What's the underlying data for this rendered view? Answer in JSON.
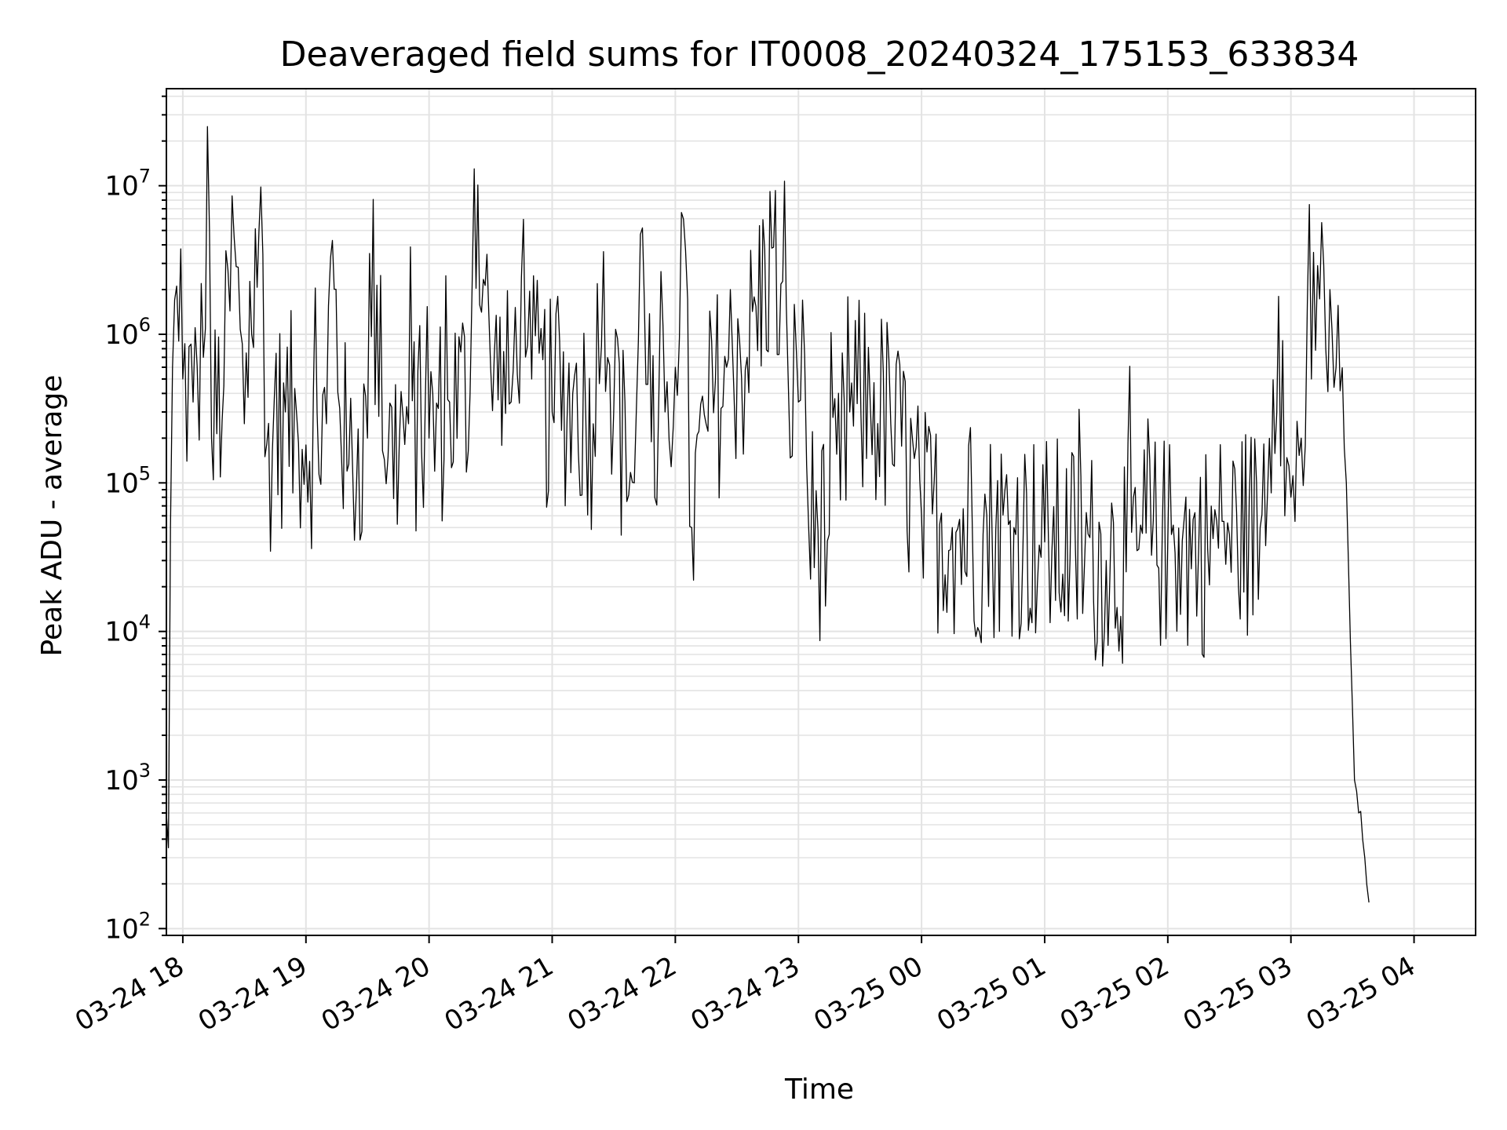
{
  "chart_data": {
    "type": "line",
    "title": "Deaveraged field sums for IT0008_20240324_175153_633834",
    "xlabel": "Time",
    "ylabel": "Peak ADU - average",
    "yscale": "log",
    "ylim": [
      90,
      45000000
    ],
    "xlim": [
      "2024-03-24 17:52",
      "2024-03-25 04:30"
    ],
    "grid": true,
    "line_color": "#000000",
    "grid_color": "#e3e3e3",
    "x_ticks": [
      {
        "time": "2024-03-24 18:00",
        "label": "03-24 18"
      },
      {
        "time": "2024-03-24 19:00",
        "label": "03-24 19"
      },
      {
        "time": "2024-03-24 20:00",
        "label": "03-24 20"
      },
      {
        "time": "2024-03-24 21:00",
        "label": "03-24 21"
      },
      {
        "time": "2024-03-24 22:00",
        "label": "03-24 22"
      },
      {
        "time": "2024-03-24 23:00",
        "label": "03-24 23"
      },
      {
        "time": "2024-03-25 00:00",
        "label": "03-25 00"
      },
      {
        "time": "2024-03-25 01:00",
        "label": "03-25 01"
      },
      {
        "time": "2024-03-25 02:00",
        "label": "03-25 02"
      },
      {
        "time": "2024-03-25 03:00",
        "label": "03-25 03"
      },
      {
        "time": "2024-03-25 04:00",
        "label": "03-25 04"
      }
    ],
    "y_ticks": [
      {
        "value": 100,
        "base": "10",
        "exp": "2"
      },
      {
        "value": 1000,
        "base": "10",
        "exp": "3"
      },
      {
        "value": 10000,
        "base": "10",
        "exp": "4"
      },
      {
        "value": 100000,
        "base": "10",
        "exp": "5"
      },
      {
        "value": 1000000,
        "base": "10",
        "exp": "6"
      },
      {
        "value": 10000000,
        "base": "10",
        "exp": "7"
      }
    ],
    "series": [
      {
        "points": [
          [
            "2024-03-24 17:52",
            600
          ],
          [
            "2024-03-24 17:53",
            350
          ],
          [
            "2024-03-24 17:54",
            50000
          ],
          [
            "2024-03-24 17:55",
            600000
          ],
          [
            "2024-03-24 17:56",
            1700000
          ],
          [
            "2024-03-24 17:58",
            900000
          ],
          [
            "2024-03-24 18:00",
            500000
          ],
          [
            "2024-03-24 18:05",
            350000
          ],
          [
            "2024-03-24 18:10",
            700000
          ],
          [
            "2024-03-24 18:12",
            25000000
          ],
          [
            "2024-03-24 18:14",
            200000
          ],
          [
            "2024-03-24 18:20",
            450000
          ],
          [
            "2024-03-24 18:25",
            4500000
          ],
          [
            "2024-03-24 18:30",
            250000
          ],
          [
            "2024-03-24 18:38",
            9800000
          ],
          [
            "2024-03-24 18:40",
            150000
          ],
          [
            "2024-03-24 18:50",
            300000
          ],
          [
            "2024-03-24 19:00",
            180000
          ],
          [
            "2024-03-24 19:10",
            250000
          ],
          [
            "2024-03-24 19:12",
            3300000
          ],
          [
            "2024-03-24 19:20",
            120000
          ],
          [
            "2024-03-24 19:30",
            200000
          ],
          [
            "2024-03-24 19:31",
            3500000
          ],
          [
            "2024-03-24 19:40",
            150000
          ],
          [
            "2024-03-24 19:50",
            250000
          ],
          [
            "2024-03-24 20:00",
            200000
          ],
          [
            "2024-03-24 20:10",
            350000
          ],
          [
            "2024-03-24 20:20",
            400000
          ],
          [
            "2024-03-24 20:22",
            13000000
          ],
          [
            "2024-03-24 20:30",
            600000
          ],
          [
            "2024-03-24 20:40",
            350000
          ],
          [
            "2024-03-24 20:45",
            2400000
          ],
          [
            "2024-03-24 20:50",
            500000
          ],
          [
            "2024-03-24 21:00",
            300000
          ],
          [
            "2024-03-24 21:10",
            400000
          ],
          [
            "2024-03-24 21:20",
            250000
          ],
          [
            "2024-03-24 21:25",
            3600000
          ],
          [
            "2024-03-24 21:30",
            300000
          ],
          [
            "2024-03-24 21:40",
            100000
          ],
          [
            "2024-03-24 21:44",
            5200000
          ],
          [
            "2024-03-24 21:50",
            80000
          ],
          [
            "2024-03-24 21:55",
            300000
          ],
          [
            "2024-03-24 22:00",
            600000
          ],
          [
            "2024-03-24 22:03",
            6600000
          ],
          [
            "2024-03-24 22:08",
            50000
          ],
          [
            "2024-03-24 22:15",
            250000
          ],
          [
            "2024-03-24 22:25",
            600000
          ],
          [
            "2024-03-24 22:35",
            700000
          ],
          [
            "2024-03-24 22:47",
            3800000
          ],
          [
            "2024-03-24 22:55",
            500000
          ],
          [
            "2024-03-24 23:00",
            350000
          ],
          [
            "2024-03-24 23:02",
            1700000
          ],
          [
            "2024-03-24 23:05",
            50000
          ],
          [
            "2024-03-24 23:15",
            45000
          ],
          [
            "2024-03-24 23:25",
            300000
          ],
          [
            "2024-03-24 23:35",
            350000
          ],
          [
            "2024-03-24 23:45",
            250000
          ],
          [
            "2024-03-25 00:00",
            60000
          ],
          [
            "2024-03-25 00:15",
            50000
          ],
          [
            "2024-03-25 00:30",
            45000
          ],
          [
            "2024-03-25 00:45",
            50000
          ],
          [
            "2024-03-25 01:00",
            40000
          ],
          [
            "2024-03-25 01:15",
            35000
          ],
          [
            "2024-03-25 01:30",
            30000
          ],
          [
            "2024-03-25 01:45",
            35000
          ],
          [
            "2024-03-25 02:00",
            40000
          ],
          [
            "2024-03-25 02:15",
            35000
          ],
          [
            "2024-03-25 02:30",
            45000
          ],
          [
            "2024-03-25 02:45",
            50000
          ],
          [
            "2024-03-25 02:54",
            1800000
          ],
          [
            "2024-03-25 02:57",
            60000
          ],
          [
            "2024-03-25 03:00",
            80000
          ],
          [
            "2024-03-25 03:05",
            200000
          ],
          [
            "2024-03-25 03:10",
            500000
          ],
          [
            "2024-03-25 03:13",
            2900000
          ],
          [
            "2024-03-25 03:17",
            800000
          ],
          [
            "2024-03-25 03:19",
            2000000
          ],
          [
            "2024-03-25 03:22",
            600000
          ],
          [
            "2024-03-25 03:27",
            100000
          ],
          [
            "2024-03-25 03:31",
            1000
          ],
          [
            "2024-03-25 03:33",
            600
          ],
          [
            "2024-03-25 03:36",
            300
          ],
          [
            "2024-03-25 03:38",
            150
          ]
        ]
      }
    ]
  }
}
